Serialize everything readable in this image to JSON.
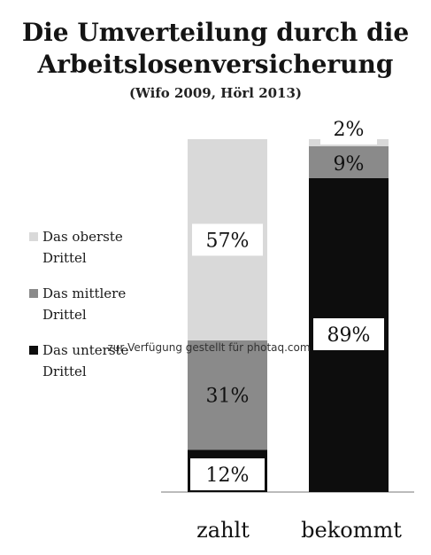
{
  "title_line1": "Die Umverteilung durch die",
  "title_line2": "Arbeitslosenversicherung",
  "subtitle": "(Wifo 2009, Hörl 2013)",
  "watermark": "zur Verfügung gestellt für photaq.com",
  "colors": {
    "top": "#d9d9d9",
    "middle": "#8a8a8a",
    "bottom": "#0d0d0d"
  },
  "chart_data": {
    "type": "bar",
    "stacked": true,
    "categories": [
      "zahlt",
      "bekommt"
    ],
    "series": [
      {
        "name": "Das unterste Drittel",
        "legend_lines": [
          "Das unterste",
          "Drittel"
        ],
        "values": [
          12,
          89
        ],
        "labels": [
          "12%",
          "89%"
        ],
        "color": "#0d0d0d"
      },
      {
        "name": "Das mittlere Drittel",
        "legend_lines": [
          "Das mittlere",
          "Drittel"
        ],
        "values": [
          31,
          9
        ],
        "labels": [
          "31%",
          "9%"
        ],
        "color": "#8a8a8a"
      },
      {
        "name": "Das oberste Drittel",
        "legend_lines": [
          "Das oberste",
          "Drittel"
        ],
        "values": [
          57,
          2
        ],
        "labels": [
          "57%",
          "2%"
        ],
        "color": "#d9d9d9"
      }
    ],
    "ylim": [
      0,
      100
    ],
    "legend_position": "left"
  }
}
